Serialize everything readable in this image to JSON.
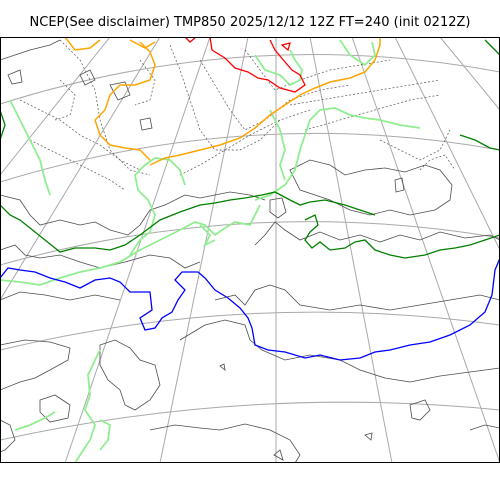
{
  "title": "NCEP(See disclaimer) TMP850 2025/12/12 12Z FT=240 (init 0212Z)",
  "colors": {
    "frame": "#000000",
    "graticule": "#a9a9a9",
    "coastline": "#4d4d4d",
    "thin_isotherm": "#555555",
    "isotherm_red": "#ff0000",
    "isotherm_orange": "#ffa500",
    "isotherm_lightgreen": "#90ee90",
    "isotherm_darkgreen": "#008000",
    "isotherm_blue": "#0000ff"
  }
}
